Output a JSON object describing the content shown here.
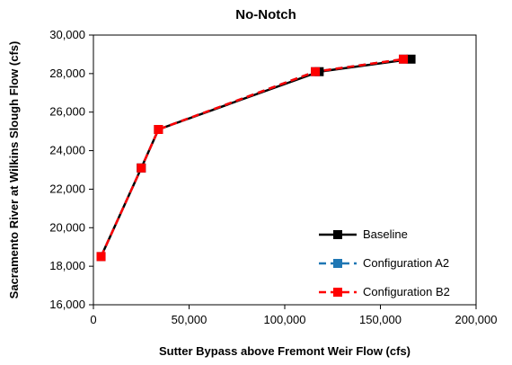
{
  "chart_data": {
    "type": "line",
    "title": "No-Notch",
    "xlabel": "Sutter Bypass above Fremont Weir Flow (cfs)",
    "ylabel": "Sacramento River at Wilkins Slough Flow (cfs)",
    "xlim": [
      0,
      200000
    ],
    "ylim": [
      16000,
      30000
    ],
    "x_ticks": [
      0,
      50000,
      100000,
      150000,
      200000
    ],
    "x_tick_labels": [
      "0",
      "50,000",
      "100,000",
      "150,000",
      "200,000"
    ],
    "y_ticks": [
      16000,
      18000,
      20000,
      22000,
      24000,
      26000,
      28000,
      30000
    ],
    "y_tick_labels": [
      "16,000",
      "18,000",
      "20,000",
      "22,000",
      "24,000",
      "26,000",
      "28,000",
      "30,000"
    ],
    "grid": false,
    "legend_position": "bottom-right",
    "series": [
      {
        "name": "Baseline",
        "color": "#000000",
        "line_style": "solid",
        "marker": "square",
        "points": [
          [
            4000,
            18500
          ],
          [
            25000,
            23100
          ],
          [
            34000,
            25100
          ],
          [
            118000,
            28100
          ],
          [
            166000,
            28750
          ]
        ]
      },
      {
        "name": "Configuration A2",
        "color": "#1f77b4",
        "line_style": "dashed",
        "marker": "square",
        "points": [
          [
            4000,
            18500
          ],
          [
            25000,
            23100
          ],
          [
            34000,
            25100
          ],
          [
            116000,
            28100
          ],
          [
            162000,
            28750
          ]
        ]
      },
      {
        "name": "Configuration B2",
        "color": "#ff0000",
        "line_style": "dashed",
        "marker": "square",
        "points": [
          [
            4000,
            18500
          ],
          [
            25000,
            23100
          ],
          [
            34000,
            25100
          ],
          [
            116000,
            28100
          ],
          [
            162000,
            28750
          ]
        ]
      }
    ]
  }
}
